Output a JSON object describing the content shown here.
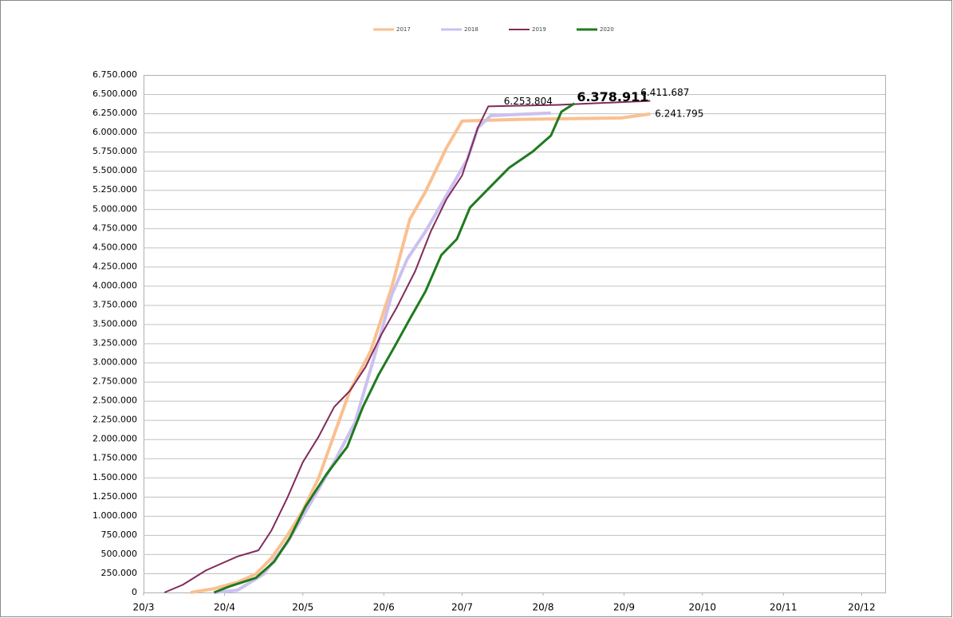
{
  "chart_data": {
    "type": "line",
    "ylim": [
      0,
      6750000
    ],
    "yticks": [
      0,
      {
        "value": 250000,
        "label": "250.000"
      },
      {
        "value": 500000,
        "label": "500.000"
      },
      {
        "value": 750000,
        "label": "750.000"
      },
      {
        "value": 1000000,
        "label": "1.000.000"
      },
      {
        "value": 1250000,
        "label": "1.250.000"
      },
      {
        "value": 1500000,
        "label": "1.500.000"
      },
      {
        "value": 1750000,
        "label": "1.750.000"
      },
      {
        "value": 2000000,
        "label": "2.000.000"
      },
      {
        "value": 2250000,
        "label": "2.250.000"
      },
      {
        "value": 2500000,
        "label": "2.500.000"
      },
      {
        "value": 2750000,
        "label": "2.750.000"
      },
      {
        "value": 3000000,
        "label": "3.000.000"
      },
      {
        "value": 3250000,
        "label": "3.250.000"
      },
      {
        "value": 3500000,
        "label": "3.500.000"
      },
      {
        "value": 3750000,
        "label": "3.750.000"
      },
      {
        "value": 4000000,
        "label": "4.000.000"
      },
      {
        "value": 4250000,
        "label": "4.250.000"
      },
      {
        "value": 4500000,
        "label": "4.500.000"
      },
      {
        "value": 4750000,
        "label": "4.750.000"
      },
      {
        "value": 5000000,
        "label": "5.000.000"
      },
      {
        "value": 5250000,
        "label": "5.250.000"
      },
      {
        "value": 5500000,
        "label": "5.500.000"
      },
      {
        "value": 5750000,
        "label": "5.750.000"
      },
      {
        "value": 6000000,
        "label": "6.000.000"
      },
      {
        "value": 6250000,
        "label": "6.250.000"
      },
      {
        "value": 6500000,
        "label": "6.500.000"
      },
      {
        "value": 6750000,
        "label": "6.750.000"
      }
    ],
    "xlim": [
      "20/3",
      "29/12"
    ],
    "xticks": [
      "20/3",
      "20/4",
      "20/5",
      "20/6",
      "20/7",
      "20/8",
      "20/9",
      "20/10",
      "20/11",
      "20/12"
    ],
    "grid": true,
    "legend": "top",
    "series": [
      {
        "name": "2017",
        "color": "#fac090",
        "width": 4,
        "label_position": "right",
        "label_weight": "normal",
        "x": [
          "7/4",
          "16/4",
          "25/4",
          "2/5",
          "8/5",
          "14/5",
          "20/5",
          "26/5",
          "1/6",
          "7/6",
          "15/6",
          "23/6",
          "30/6",
          "6/7",
          "14/7",
          "20/7",
          "10/8",
          "19/9",
          "30/9"
        ],
        "values": [
          0,
          50000,
          135000,
          240000,
          450000,
          740000,
          1070000,
          1490000,
          2060000,
          2630000,
          3150000,
          3980000,
          4870000,
          5230000,
          5800000,
          6150000,
          6170000,
          6190000,
          6241795
        ],
        "value_labels": [
          null,
          null,
          null,
          null,
          null,
          null,
          null,
          null,
          null,
          null,
          null,
          null,
          null,
          null,
          null,
          null,
          null,
          null,
          "6.241.795"
        ]
      },
      {
        "name": "2018",
        "color": "#ccc0f0",
        "width": 4,
        "label_position": "above-left",
        "label_weight": "normal",
        "x": [
          "16/4",
          "25/4",
          "5/5",
          "14/5",
          "23/5",
          "1/6",
          "9/6",
          "17/6",
          "23/6",
          "29/6",
          "6/7",
          "14/7",
          "22/7",
          "26/7",
          "31/7",
          "23/8"
        ],
        "values": [
          0,
          30000,
          240000,
          650000,
          1170000,
          1700000,
          2220000,
          3150000,
          3880000,
          4350000,
          4710000,
          5180000,
          5650000,
          6060000,
          6220000,
          6253804
        ],
        "value_labels": [
          null,
          null,
          null,
          null,
          null,
          null,
          null,
          null,
          null,
          null,
          null,
          null,
          null,
          null,
          null,
          "6.253.804"
        ]
      },
      {
        "name": "2019",
        "color": "#7f2b5a",
        "width": 2,
        "label_position": "above-right",
        "label_weight": "normal",
        "x": [
          "28/3",
          "4/4",
          "13/4",
          "20/4",
          "25/4",
          "3/5",
          "8/5",
          "14/5",
          "20/5",
          "26/5",
          "1/6",
          "7/6",
          "13/6",
          "19/6",
          "25/6",
          "2/7",
          "8/7",
          "14/7",
          "20/7",
          "26/7",
          "30/7",
          "26/8",
          "30/9"
        ],
        "values": [
          0,
          100000,
          290000,
          395000,
          470000,
          550000,
          810000,
          1230000,
          1700000,
          2030000,
          2420000,
          2630000,
          2940000,
          3360000,
          3720000,
          4190000,
          4710000,
          5130000,
          5440000,
          6060000,
          6340000,
          6360000,
          6411687
        ],
        "value_labels": [
          null,
          null,
          null,
          null,
          null,
          null,
          null,
          null,
          null,
          null,
          null,
          null,
          null,
          null,
          null,
          null,
          null,
          null,
          null,
          null,
          null,
          null,
          "6.411.687"
        ]
      },
      {
        "name": "2020",
        "color": "#1e7b1e",
        "width": 3,
        "label_position": "right",
        "label_weight": "bold",
        "x": [
          "16/4",
          "22/4",
          "2/5",
          "9/5",
          "15/5",
          "21/5",
          "29/5",
          "6/6",
          "12/6",
          "18/6",
          "24/6",
          "30/6",
          "6/7",
          "12/7",
          "18/7",
          "23/7",
          "29/7",
          "7/8",
          "16/8",
          "23/8",
          "27/8",
          "1/9"
        ],
        "values": [
          0,
          80000,
          190000,
          400000,
          710000,
          1120000,
          1540000,
          1900000,
          2420000,
          2840000,
          3200000,
          3570000,
          3930000,
          4400000,
          4610000,
          5020000,
          5230000,
          5540000,
          5750000,
          5960000,
          6270000,
          6378911
        ],
        "value_labels": [
          null,
          null,
          null,
          null,
          null,
          null,
          null,
          null,
          null,
          null,
          null,
          null,
          null,
          null,
          null,
          null,
          null,
          null,
          null,
          null,
          null,
          "6.378.911"
        ]
      }
    ]
  }
}
